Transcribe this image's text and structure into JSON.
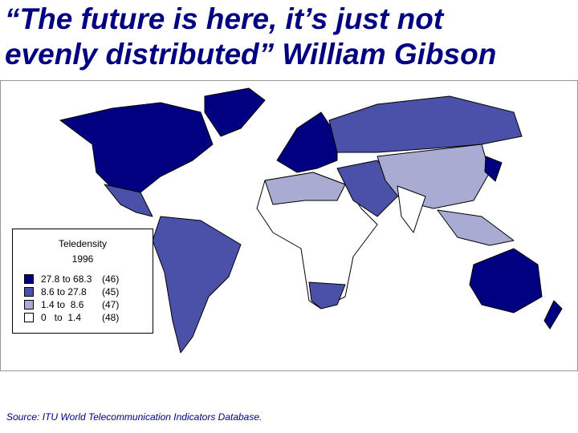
{
  "title": {
    "lines": [
      "“The future is here, it’s just not",
      "evenly distributed” William Gibson"
    ]
  },
  "legend": {
    "title_lines": [
      "Teledensity",
      "1996"
    ],
    "items": [
      {
        "color": "#000080",
        "range": "27.8 to 68.3",
        "count": "(46)"
      },
      {
        "color": "#4b50a8",
        "range": "8.6 to 27.8",
        "count": "(45)"
      },
      {
        "color": "#a9acd2",
        "range": "1.4 to  8.6",
        "count": "(47)"
      },
      {
        "color": "#ffffff",
        "range": "0   to  1.4",
        "count": "(48)"
      }
    ]
  },
  "source": "Source:  ITU World Telecommunication Indicators Database."
}
